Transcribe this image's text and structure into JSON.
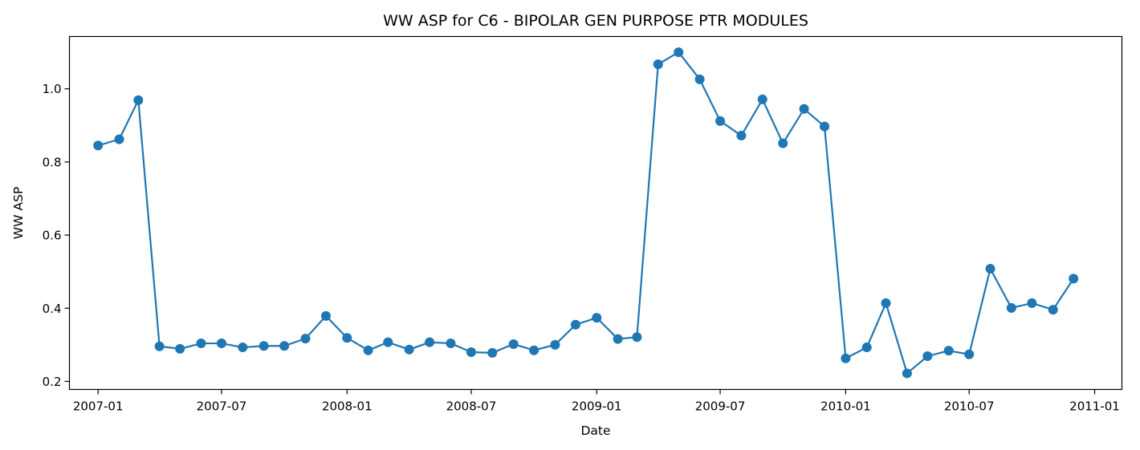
{
  "chart_data": {
    "type": "line",
    "title": "WW ASP for C6 - BIPOLAR GEN PURPOSE PTR MODULES",
    "xlabel": "Date",
    "ylabel": "WW ASP",
    "x_ticks": [
      "2007-01",
      "2007-07",
      "2008-01",
      "2008-07",
      "2009-01",
      "2009-07",
      "2010-01",
      "2010-07",
      "2011-01"
    ],
    "y_ticks": [
      "0.2",
      "0.4",
      "0.6",
      "0.8",
      "1.0"
    ],
    "xlim": [
      "2006-11-20",
      "2011-02-10"
    ],
    "ylim": [
      0.178,
      1.143
    ],
    "grid": false,
    "legend": "none",
    "series": [
      {
        "color": "#1f77b4",
        "marker": "circle",
        "x": [
          "2007-01-01",
          "2007-02-01",
          "2007-03-01",
          "2007-04-01",
          "2007-05-01",
          "2007-06-01",
          "2007-07-01",
          "2007-08-01",
          "2007-09-01",
          "2007-10-01",
          "2007-11-01",
          "2007-12-01",
          "2008-01-01",
          "2008-02-01",
          "2008-03-01",
          "2008-04-01",
          "2008-05-01",
          "2008-06-01",
          "2008-07-01",
          "2008-08-01",
          "2008-09-01",
          "2008-10-01",
          "2008-11-01",
          "2008-12-01",
          "2009-01-01",
          "2009-02-01",
          "2009-03-01",
          "2009-04-01",
          "2009-05-01",
          "2009-06-01",
          "2009-07-01",
          "2009-08-01",
          "2009-09-01",
          "2009-10-01",
          "2009-11-01",
          "2009-12-01",
          "2010-01-01",
          "2010-02-01",
          "2010-03-01",
          "2010-04-01",
          "2010-05-01",
          "2010-06-01",
          "2010-07-01",
          "2010-08-01",
          "2010-09-01",
          "2010-10-01",
          "2010-11-01",
          "2010-12-01"
        ],
        "values": [
          0.845,
          0.862,
          0.969,
          0.296,
          0.289,
          0.304,
          0.304,
          0.293,
          0.297,
          0.297,
          0.317,
          0.379,
          0.319,
          0.285,
          0.307,
          0.287,
          0.307,
          0.304,
          0.28,
          0.278,
          0.302,
          0.285,
          0.3,
          0.355,
          0.374,
          0.316,
          0.321,
          1.067,
          1.1,
          1.026,
          0.912,
          0.872,
          0.971,
          0.851,
          0.945,
          0.897,
          0.263,
          0.293,
          0.414,
          0.222,
          0.269,
          0.284,
          0.274,
          0.508,
          0.401,
          0.414,
          0.396,
          0.481
        ]
      }
    ]
  }
}
